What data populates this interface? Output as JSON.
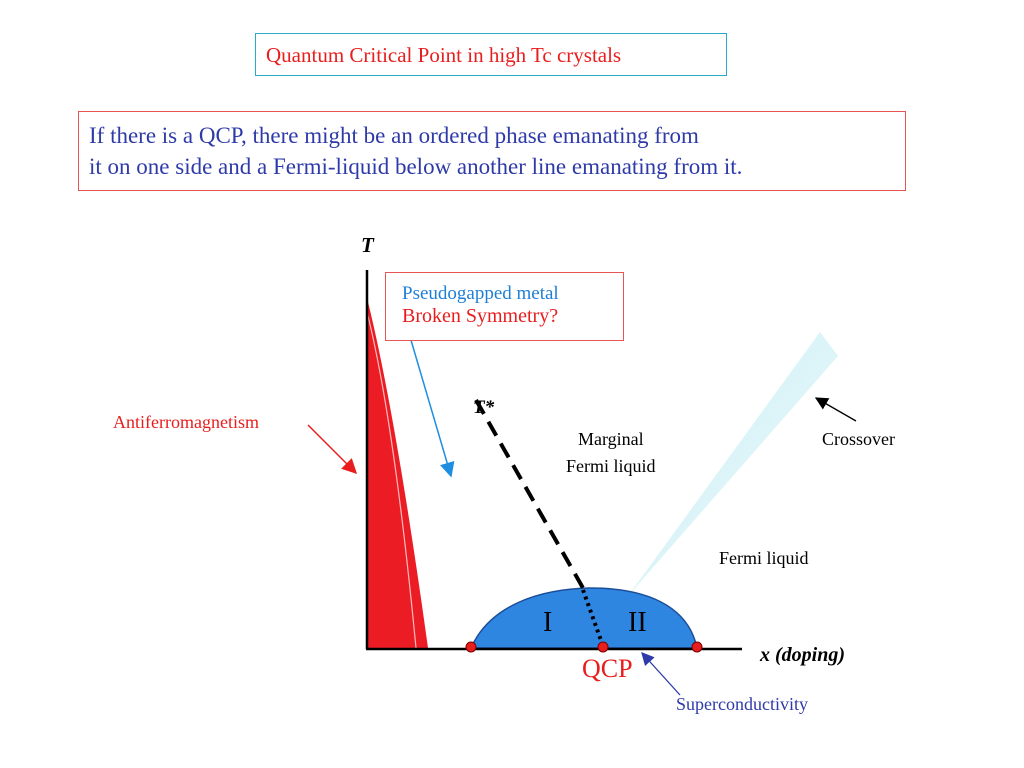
{
  "title": "Quantum Critical Point in high Tc crystals",
  "intro": {
    "line1": "If there is a QCP, there might be an ordered phase emanating from",
    "line2": "it on one side and a Fermi-liquid below another line emanating from it."
  },
  "pseudogap_box": {
    "line1": "Pseudogapped metal",
    "line2": "Broken Symmetry?"
  },
  "diagram": {
    "y_axis_label": "T",
    "x_axis_label": "x  (doping)",
    "tstar_label": "T*",
    "antiferromagnetism_label": "Antiferromagnetism",
    "marginal_fermi_liquid_line1": "Marginal",
    "marginal_fermi_liquid_line2": "Fermi liquid",
    "crossover_label": "Crossover",
    "fermi_liquid_label": "Fermi liquid",
    "region_I": "I",
    "region_II": "II",
    "qcp_label": "QCP",
    "superconductivity_label": "Superconductivity"
  },
  "colors": {
    "title_red": "#e81e1e",
    "intro_blue": "#2e3aa8",
    "pseudogap_blue": "#1e7fd6",
    "antiferromagnet_red": "#ec1c24",
    "superconductor_blue": "#2f86e0",
    "crossover_cyan": "#c8eef2"
  }
}
